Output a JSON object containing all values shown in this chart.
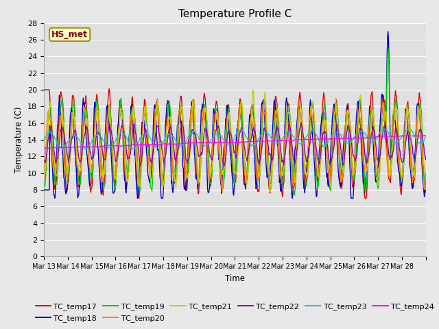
{
  "title": "Temperature Profile C",
  "xlabel": "Time",
  "ylabel": "Temperature (C)",
  "annotation": "HS_met",
  "ylim": [
    0,
    28
  ],
  "yticks": [
    0,
    2,
    4,
    6,
    8,
    10,
    12,
    14,
    16,
    18,
    20,
    22,
    24,
    26,
    28
  ],
  "n_days": 16,
  "day_start": 13,
  "series_colors": {
    "TC_temp17": "#dd0000",
    "TC_temp18": "#0000cc",
    "TC_temp19": "#00cc00",
    "TC_temp20": "#ff8800",
    "TC_temp21": "#cccc00",
    "TC_temp22": "#9900aa",
    "TC_temp23": "#00cccc",
    "TC_temp24": "#ff00ff"
  },
  "fig_bg_color": "#e8e8e8",
  "plot_bg_color": "#e0e0e0",
  "grid_color": "#ffffff",
  "annotation_bg": "#ffffcc",
  "annotation_border": "#999900",
  "annotation_text_color": "#880000",
  "linewidth": 1.0,
  "legend_ncol_row1": 6,
  "legend_fontsize": 8
}
